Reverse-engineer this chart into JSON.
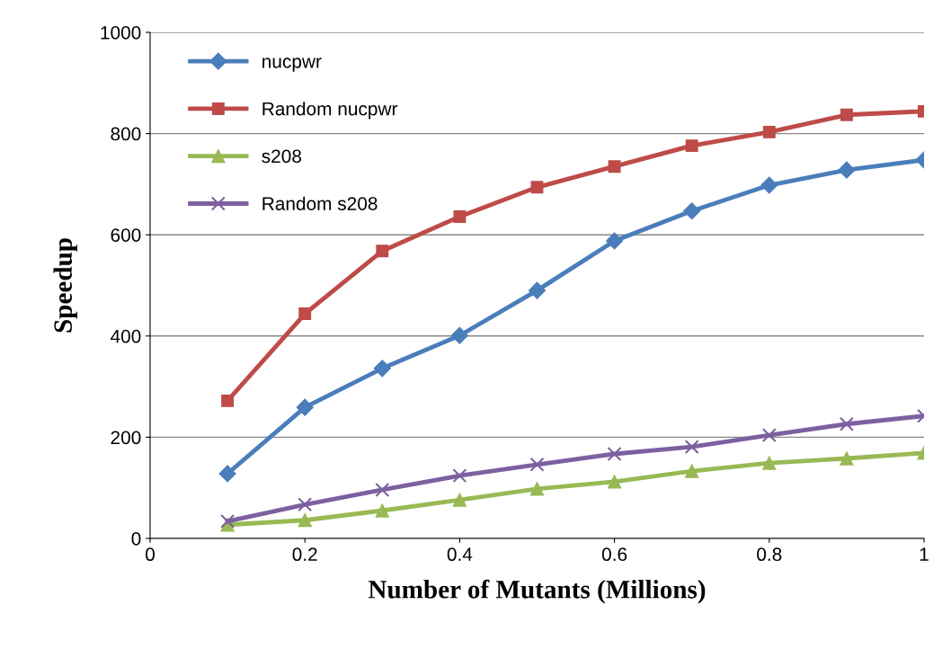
{
  "chart_data": {
    "type": "line",
    "xlabel": "Number of Mutants (Millions)",
    "ylabel": "Speedup",
    "x": [
      0.1,
      0.2,
      0.3,
      0.4,
      0.5,
      0.6,
      0.7,
      0.8,
      0.9,
      1.0
    ],
    "series": [
      {
        "name": "nucpwr",
        "color": "#4a7ebb",
        "marker": "diamond",
        "values": [
          128,
          259,
          336,
          401,
          490,
          588,
          647,
          698,
          728,
          748
        ]
      },
      {
        "name": "Random nucpwr",
        "color": "#be4b48",
        "marker": "square",
        "values": [
          272,
          444,
          568,
          636,
          694,
          735,
          776,
          803,
          837,
          844
        ]
      },
      {
        "name": "s208",
        "color": "#98b954",
        "marker": "triangle",
        "values": [
          27,
          36,
          55,
          76,
          98,
          112,
          133,
          149,
          158,
          169
        ]
      },
      {
        "name": "Random s208",
        "color": "#7d60a0",
        "marker": "cross",
        "values": [
          34,
          67,
          96,
          124,
          146,
          167,
          181,
          204,
          226,
          242
        ]
      }
    ],
    "xlim": [
      0,
      1
    ],
    "xticks": [
      0,
      0.2,
      0.4,
      0.6,
      0.8,
      1
    ],
    "ylim": [
      0,
      1000
    ],
    "yticks": [
      0,
      200,
      400,
      600,
      800,
      1000
    ],
    "grid": "y",
    "legend": "top left",
    "line_style": "solid"
  }
}
